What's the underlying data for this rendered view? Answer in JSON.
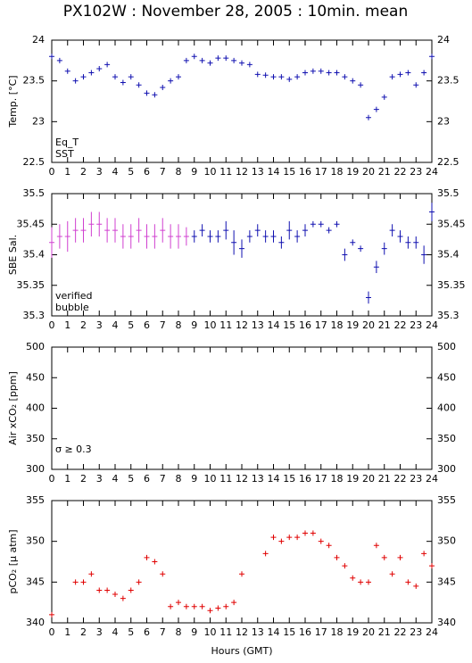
{
  "chart_data": [
    {
      "type": "scatter",
      "title": "PX102W : November 28, 2005 : 10min. mean",
      "ylabel": "Temp. [°C]",
      "xlim": [
        0,
        24
      ],
      "xticks": [
        0,
        1,
        2,
        3,
        4,
        5,
        6,
        7,
        8,
        9,
        10,
        11,
        12,
        13,
        14,
        15,
        16,
        17,
        18,
        19,
        20,
        21,
        22,
        23,
        24
      ],
      "ylim": [
        22.5,
        24
      ],
      "yticks": [
        22.5,
        23,
        23.5,
        24
      ],
      "series": [
        {
          "name": "Eq_T",
          "color": "#e00000",
          "x": [],
          "values": []
        },
        {
          "name": "SST",
          "color": "#1010b0",
          "x": [
            0,
            0.5,
            1,
            1.5,
            2,
            2.5,
            3,
            3.5,
            4,
            4.5,
            5,
            5.5,
            6,
            6.5,
            7,
            7.5,
            8,
            8.5,
            9,
            9.5,
            10,
            10.5,
            11,
            11.5,
            12,
            12.5,
            13,
            13.5,
            14,
            14.5,
            15,
            15.5,
            16,
            16.5,
            17,
            17.5,
            18,
            18.5,
            19,
            19.5,
            20,
            20.5,
            21,
            21.5,
            22,
            22.5,
            23,
            23.5,
            24
          ],
          "values": [
            23.8,
            23.75,
            23.62,
            23.5,
            23.55,
            23.6,
            23.65,
            23.7,
            23.55,
            23.48,
            23.55,
            23.45,
            23.35,
            23.33,
            23.42,
            23.5,
            23.55,
            23.75,
            23.8,
            23.75,
            23.72,
            23.78,
            23.78,
            23.75,
            23.72,
            23.7,
            23.58,
            23.57,
            23.55,
            23.55,
            23.52,
            23.55,
            23.6,
            23.62,
            23.62,
            23.6,
            23.6,
            23.55,
            23.5,
            23.45,
            23.05,
            23.15,
            23.3,
            23.55,
            23.58,
            23.6,
            23.45,
            23.6,
            23.8
          ]
        }
      ]
    },
    {
      "type": "scatter",
      "ylabel": "SBE Sal.",
      "xlim": [
        0,
        24
      ],
      "xticks": [
        0,
        1,
        2,
        3,
        4,
        5,
        6,
        7,
        8,
        9,
        10,
        11,
        12,
        13,
        14,
        15,
        16,
        17,
        18,
        19,
        20,
        21,
        22,
        23,
        24
      ],
      "ylim": [
        35.3,
        35.5
      ],
      "yticks": [
        35.3,
        35.35,
        35.4,
        35.45,
        35.5
      ],
      "series": [
        {
          "name": "verified",
          "color": "#1010b0",
          "x": [
            9,
            9.5,
            10,
            10.5,
            11,
            11.5,
            12,
            12.5,
            13,
            13.5,
            14,
            14.5,
            15,
            15.5,
            16,
            16.5,
            17,
            17.5,
            18,
            18.5,
            19,
            19.5,
            20,
            20.5,
            21,
            21.5,
            22,
            22.5,
            23,
            23.5,
            24
          ],
          "values": [
            35.43,
            35.44,
            35.43,
            35.43,
            35.44,
            35.42,
            35.41,
            35.43,
            35.44,
            35.43,
            35.43,
            35.42,
            35.44,
            35.43,
            35.44,
            35.45,
            35.45,
            35.44,
            35.45,
            35.4,
            35.42,
            35.41,
            35.33,
            35.38,
            35.41,
            35.44,
            35.43,
            35.42,
            35.42,
            35.4,
            35.47
          ],
          "errors": [
            0.01,
            0.01,
            0.01,
            0.01,
            0.015,
            0.02,
            0.015,
            0.01,
            0.01,
            0.01,
            0.01,
            0.01,
            0.015,
            0.01,
            0.01,
            0.005,
            0.005,
            0.005,
            0.005,
            0.01,
            0.005,
            0.005,
            0.01,
            0.01,
            0.01,
            0.01,
            0.01,
            0.01,
            0.01,
            0.015,
            0.015
          ]
        },
        {
          "name": "bubble",
          "color": "#d040d0",
          "x": [
            0,
            0.5,
            1,
            1.5,
            2,
            2.5,
            3,
            3.5,
            4,
            4.5,
            5,
            5.5,
            6,
            6.5,
            7,
            7.5,
            8,
            8.5
          ],
          "values": [
            35.42,
            35.43,
            35.43,
            35.44,
            35.44,
            35.45,
            35.45,
            35.44,
            35.44,
            35.43,
            35.43,
            35.44,
            35.43,
            35.43,
            35.44,
            35.43,
            35.43,
            35.43
          ],
          "errors": [
            0.025,
            0.02,
            0.025,
            0.02,
            0.02,
            0.02,
            0.02,
            0.02,
            0.02,
            0.02,
            0.02,
            0.02,
            0.02,
            0.02,
            0.02,
            0.02,
            0.02,
            0.015
          ]
        }
      ]
    },
    {
      "type": "scatter",
      "ylabel": "Air xCO₂ [ppm]",
      "xlim": [
        0,
        24
      ],
      "xticks": [
        0,
        1,
        2,
        3,
        4,
        5,
        6,
        7,
        8,
        9,
        10,
        11,
        12,
        13,
        14,
        15,
        16,
        17,
        18,
        19,
        20,
        21,
        22,
        23,
        24
      ],
      "ylim": [
        300,
        500
      ],
      "yticks": [
        300,
        350,
        400,
        450,
        500
      ],
      "annotation": "σ ≥ 0.3",
      "annotation_color": "#d040d0",
      "series": []
    },
    {
      "type": "scatter",
      "ylabel": "pCO₂ [μ atm]",
      "xlabel": "Hours (GMT)",
      "xlim": [
        0,
        24
      ],
      "xticks": [
        0,
        1,
        2,
        3,
        4,
        5,
        6,
        7,
        8,
        9,
        10,
        11,
        12,
        13,
        14,
        15,
        16,
        17,
        18,
        19,
        20,
        21,
        22,
        23,
        24
      ],
      "ylim": [
        340,
        355
      ],
      "yticks": [
        340,
        345,
        350,
        355
      ],
      "series": [
        {
          "name": "pCO₂",
          "color": "#e00000",
          "x": [
            0,
            1.5,
            2,
            2.5,
            3,
            3.5,
            4,
            4.5,
            5,
            5.5,
            6,
            6.5,
            7,
            7.5,
            8,
            8.5,
            9,
            9.5,
            10,
            10.5,
            11,
            11.5,
            12,
            13.5,
            14,
            14.5,
            15,
            15.5,
            16,
            16.5,
            17,
            17.5,
            18,
            18.5,
            19,
            19.5,
            20,
            20.5,
            21,
            21.5,
            22,
            22.5,
            23,
            23.5,
            24
          ],
          "values": [
            341,
            345,
            345,
            346,
            344,
            344,
            343.5,
            343,
            344,
            345,
            348,
            347.5,
            346,
            342,
            342.5,
            342,
            342,
            342,
            341.5,
            341.8,
            342,
            342.5,
            346,
            348.5,
            350.5,
            350,
            350.5,
            350.5,
            351,
            351,
            350,
            349.5,
            348,
            347,
            345.5,
            345,
            345,
            349.5,
            348,
            346,
            348,
            345,
            344.5,
            348.5,
            347
          ]
        }
      ]
    }
  ]
}
